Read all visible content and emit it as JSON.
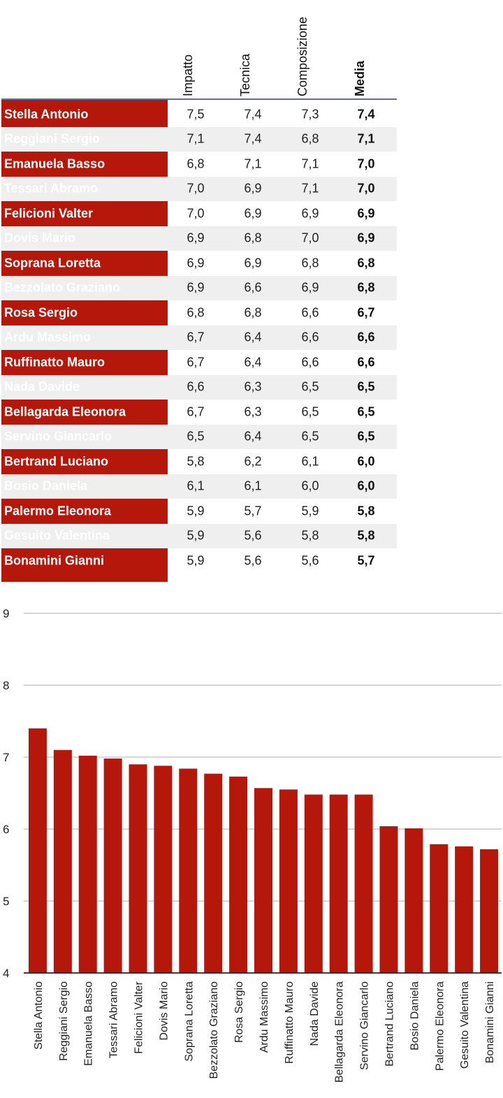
{
  "table": {
    "headers": [
      "Impatto",
      "Tecnica",
      "Composizione",
      "Media"
    ],
    "rows": [
      {
        "name": "Stella Antonio",
        "impatto": "7,5",
        "tecnica": "7,4",
        "composizione": "7,3",
        "media": "7,4"
      },
      {
        "name": "Reggiani Sergio",
        "impatto": "7,1",
        "tecnica": "7,4",
        "composizione": "6,8",
        "media": "7,1"
      },
      {
        "name": "Emanuela Basso",
        "impatto": "6,8",
        "tecnica": "7,1",
        "composizione": "7,1",
        "media": "7,0"
      },
      {
        "name": "Tessari Abramo",
        "impatto": "7,0",
        "tecnica": "6,9",
        "composizione": "7,1",
        "media": "7,0"
      },
      {
        "name": "Felicioni Valter",
        "impatto": "7,0",
        "tecnica": "6,9",
        "composizione": "6,9",
        "media": "6,9"
      },
      {
        "name": "Dovis Mario",
        "impatto": "6,9",
        "tecnica": "6,8",
        "composizione": "7,0",
        "media": "6,9"
      },
      {
        "name": "Soprana Loretta",
        "impatto": "6,9",
        "tecnica": "6,9",
        "composizione": "6,8",
        "media": "6,8"
      },
      {
        "name": "Bezzolato Graziano",
        "impatto": "6,9",
        "tecnica": "6,6",
        "composizione": "6,9",
        "media": "6,8"
      },
      {
        "name": "Rosa Sergio",
        "impatto": "6,8",
        "tecnica": "6,8",
        "composizione": "6,6",
        "media": "6,7"
      },
      {
        "name": "Ardu Massimo",
        "impatto": "6,7",
        "tecnica": "6,4",
        "composizione": "6,6",
        "media": "6,6"
      },
      {
        "name": "Ruffinatto Mauro",
        "impatto": "6,7",
        "tecnica": "6,4",
        "composizione": "6,6",
        "media": "6,6"
      },
      {
        "name": "Nada Davide",
        "impatto": "6,6",
        "tecnica": "6,3",
        "composizione": "6,5",
        "media": "6,5"
      },
      {
        "name": "Bellagarda Eleonora",
        "impatto": "6,7",
        "tecnica": "6,3",
        "composizione": "6,5",
        "media": "6,5"
      },
      {
        "name": "Servino Giancarlo",
        "impatto": "6,5",
        "tecnica": "6,4",
        "composizione": "6,5",
        "media": "6,5"
      },
      {
        "name": "Bertrand Luciano",
        "impatto": "5,8",
        "tecnica": "6,2",
        "composizione": "6,1",
        "media": "6,0"
      },
      {
        "name": "Bosio Daniela",
        "impatto": "6,1",
        "tecnica": "6,1",
        "composizione": "6,0",
        "media": "6,0"
      },
      {
        "name": "Palermo Eleonora",
        "impatto": "5,9",
        "tecnica": "5,7",
        "composizione": "5,9",
        "media": "5,8"
      },
      {
        "name": "Gesuito Valentina",
        "impatto": "5,9",
        "tecnica": "5,6",
        "composizione": "5,8",
        "media": "5,8"
      },
      {
        "name": "Bonamini Gianni",
        "impatto": "5,9",
        "tecnica": "5,6",
        "composizione": "5,6",
        "media": "5,7"
      }
    ]
  },
  "chart_data": {
    "type": "bar",
    "categories": [
      "Stella Antonio",
      "Reggiani Sergio",
      "Emanuela Basso",
      "Tessari Abramo",
      "Felicioni Valter",
      "Dovis Mario",
      "Soprana Loretta",
      "Bezzolato Graziano",
      "Rosa Sergio",
      "Ardu Massimo",
      "Ruffinatto Mauro",
      "Nada Davide",
      "Bellagarda Eleonora",
      "Servino Giancarlo",
      "Bertrand Luciano",
      "Bosio Daniela",
      "Palermo Eleonora",
      "Gesuito Valentina",
      "Bonamini Gianni"
    ],
    "values": [
      7.4,
      7.1,
      7.02,
      6.98,
      6.9,
      6.88,
      6.84,
      6.77,
      6.73,
      6.57,
      6.55,
      6.48,
      6.48,
      6.48,
      6.04,
      6.01,
      5.79,
      5.76,
      5.72
    ],
    "yticks": [
      "4",
      "5",
      "6",
      "7",
      "8",
      "9"
    ],
    "ylim": [
      4,
      9
    ],
    "grid": true,
    "bar_color": "#b5180a",
    "grid_color": "#c8c8c8",
    "title": "",
    "xlabel": "",
    "ylabel": ""
  }
}
